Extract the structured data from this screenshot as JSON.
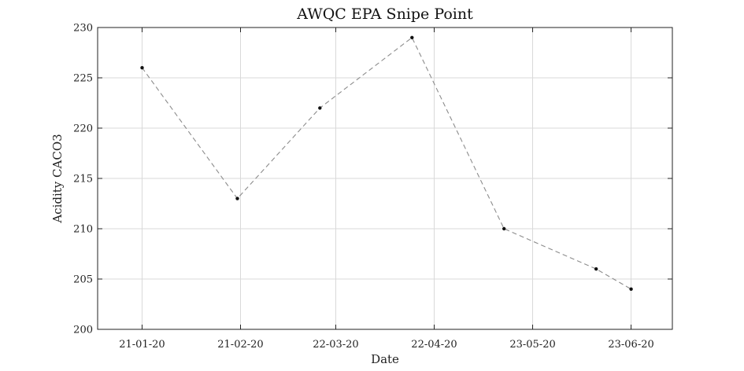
{
  "chart_data": {
    "type": "line",
    "title": "AWQC EPA Snipe Point",
    "xlabel": "Date",
    "ylabel": "Acidity CACO3",
    "x": [
      "2020-01-21",
      "2020-02-20",
      "2020-03-17",
      "2020-04-15",
      "2020-05-14",
      "2020-06-12",
      "2020-06-23"
    ],
    "values": [
      226,
      213,
      222,
      229,
      210,
      206,
      204
    ],
    "xticks": [
      "2020-01-21",
      "2020-02-21",
      "2020-03-22",
      "2020-04-22",
      "2020-05-23",
      "2020-06-23"
    ],
    "xtick_labels": [
      "21-01-20",
      "21-02-20",
      "22-03-20",
      "22-04-20",
      "23-05-20",
      "23-06-20"
    ],
    "xlim": [
      "2020-01-07",
      "2020-07-06"
    ],
    "ylim": [
      200,
      230
    ],
    "yticks": [
      200,
      205,
      210,
      215,
      220,
      225,
      230
    ],
    "grid": true,
    "line_style": "dashed",
    "line_color": "#8c8c8c",
    "marker_color": "#111111"
  }
}
